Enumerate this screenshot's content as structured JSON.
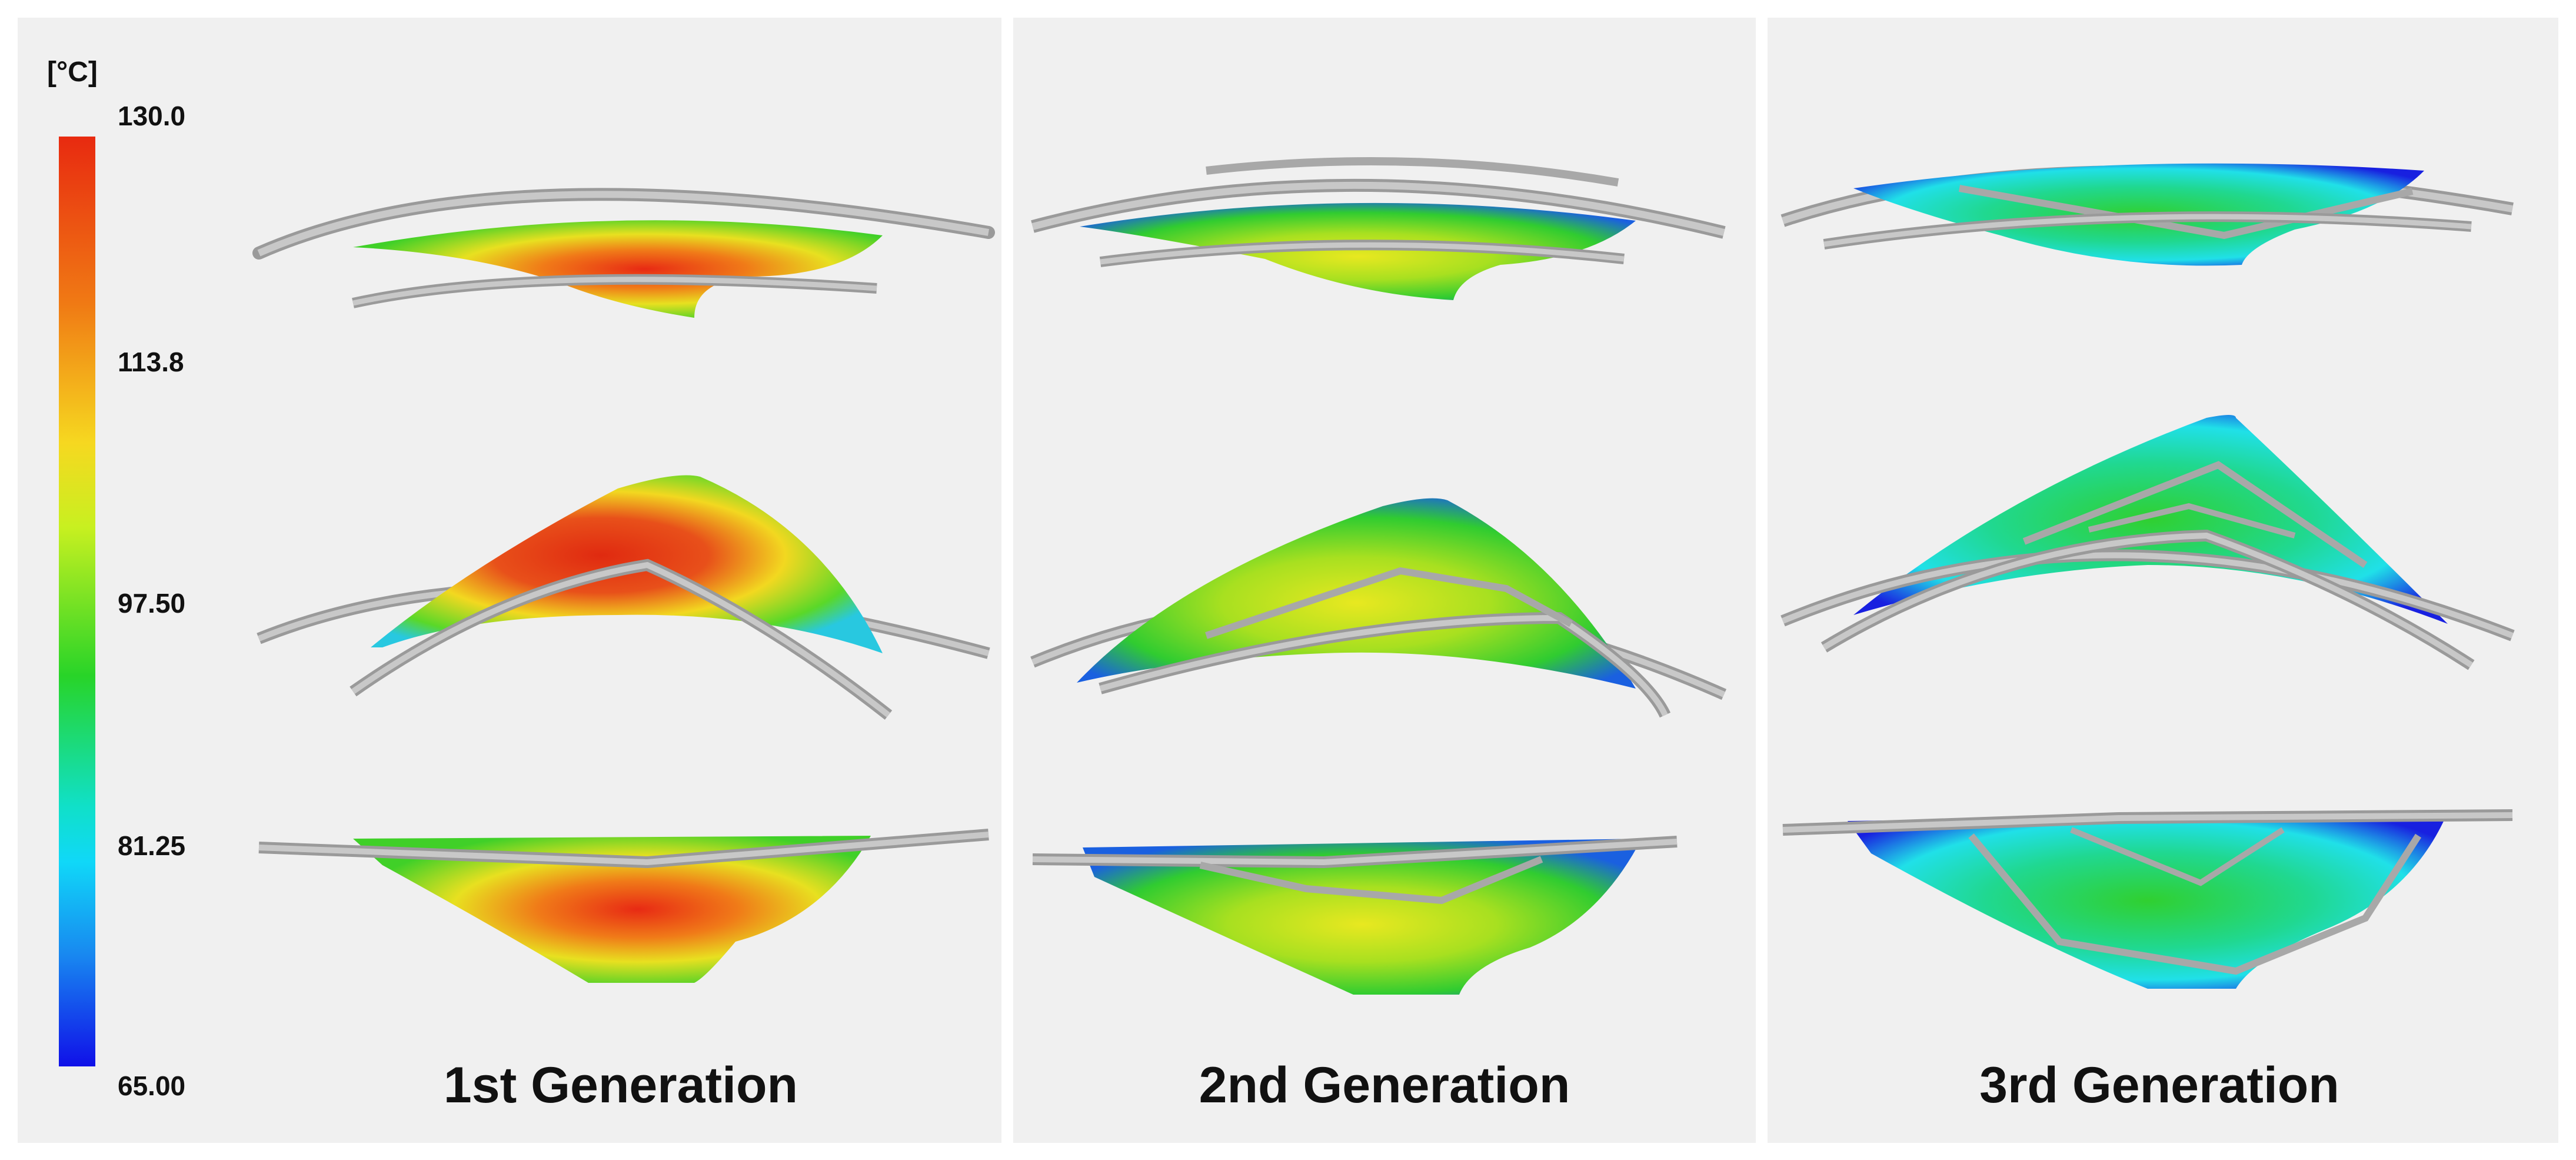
{
  "colorbar": {
    "unit": "[°C]",
    "ticks": [
      "130.0",
      "113.8",
      "97.50",
      "81.25",
      "65.00"
    ]
  },
  "generations": [
    {
      "label": "1st Generation"
    },
    {
      "label": "2nd Generation"
    },
    {
      "label": "3rd Generation"
    }
  ],
  "colors": {
    "hot": "#e8321a",
    "warm": "#f2e020",
    "mid": "#36d226",
    "cool": "#26e0e6",
    "cold": "#1a20e0",
    "pipe": "#b4b4b4"
  }
}
